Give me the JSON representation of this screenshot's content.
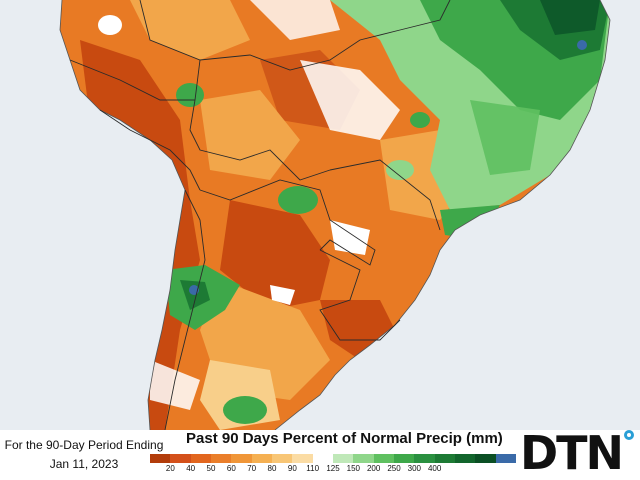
{
  "map": {
    "region": "South America",
    "colors": {
      "ocean": "#e8edf2",
      "land_dry_strong": "#c84a10",
      "land_dry": "#e87a24",
      "land_mod": "#f2a64a",
      "land_light": "#f8cf8a",
      "near_normal": "#ffffff",
      "wet_light": "#8fd68a",
      "wet": "#3ea84a",
      "wet_strong": "#1d7a34",
      "wet_heavy": "#0e5a2a",
      "extreme": "#3a6aa8",
      "border": "#2b2b2b"
    }
  },
  "period": {
    "line1": "For the 90-Day Period Ending",
    "line2": "Jan 11, 2023"
  },
  "legend": {
    "title": "Past 90 Days Percent of Normal Precip (mm)",
    "colors": [
      "#b23c0a",
      "#d4501a",
      "#e2661e",
      "#ea7e2a",
      "#f09638",
      "#f5b052",
      "#f8c676",
      "#fbdca4",
      "#ffffff",
      "#bfe8b8",
      "#8fd68a",
      "#5fc060",
      "#3ea84a",
      "#2a9040",
      "#1d7a34",
      "#12652c",
      "#0b4f24",
      "#3a6aa8"
    ],
    "ticks": [
      "20",
      "40",
      "50",
      "60",
      "70",
      "80",
      "90",
      "110",
      "125",
      "150",
      "200",
      "250",
      "300",
      "400"
    ]
  },
  "logo": {
    "text": "DTN"
  }
}
